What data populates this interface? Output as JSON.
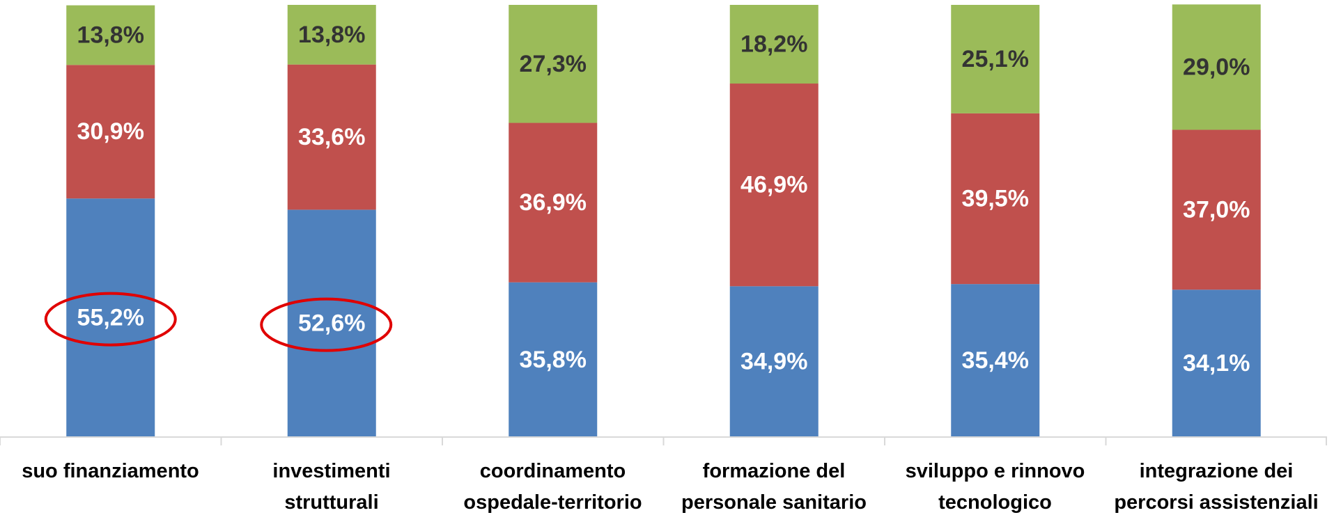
{
  "chart_data": {
    "type": "stacked_bar",
    "categories": [
      "suo finanziamento",
      "investimenti\nstrutturali",
      "coordinamento\nospedale-territorio",
      "formazione del\npersonale sanitario",
      "sviluppo e rinnovo\ntecnologico",
      "integrazione dei\npercorsi assistenziali"
    ],
    "series": [
      {
        "color": "#4f81bd",
        "values": [
          55.2,
          52.6,
          35.8,
          34.9,
          35.4,
          34.1
        ],
        "value_labels": [
          "55,2%",
          "52,6%",
          "35,8%",
          "34,9%",
          "35,4%",
          "34,1%"
        ]
      },
      {
        "color": "#c0504d",
        "values": [
          30.9,
          33.6,
          36.9,
          46.9,
          39.5,
          37.0
        ],
        "value_labels": [
          "30,9%",
          "33,6%",
          "36,9%",
          "46,9%",
          "39,5%",
          "37,0%"
        ]
      },
      {
        "color": "#9bbb59",
        "values": [
          13.8,
          13.8,
          27.3,
          18.2,
          25.1,
          29.0
        ],
        "value_labels": [
          "13,8%",
          "13,8%",
          "27,3%",
          "18,2%",
          "25,1%",
          "29,0%"
        ]
      }
    ],
    "ylim": [
      0,
      100
    ]
  }
}
